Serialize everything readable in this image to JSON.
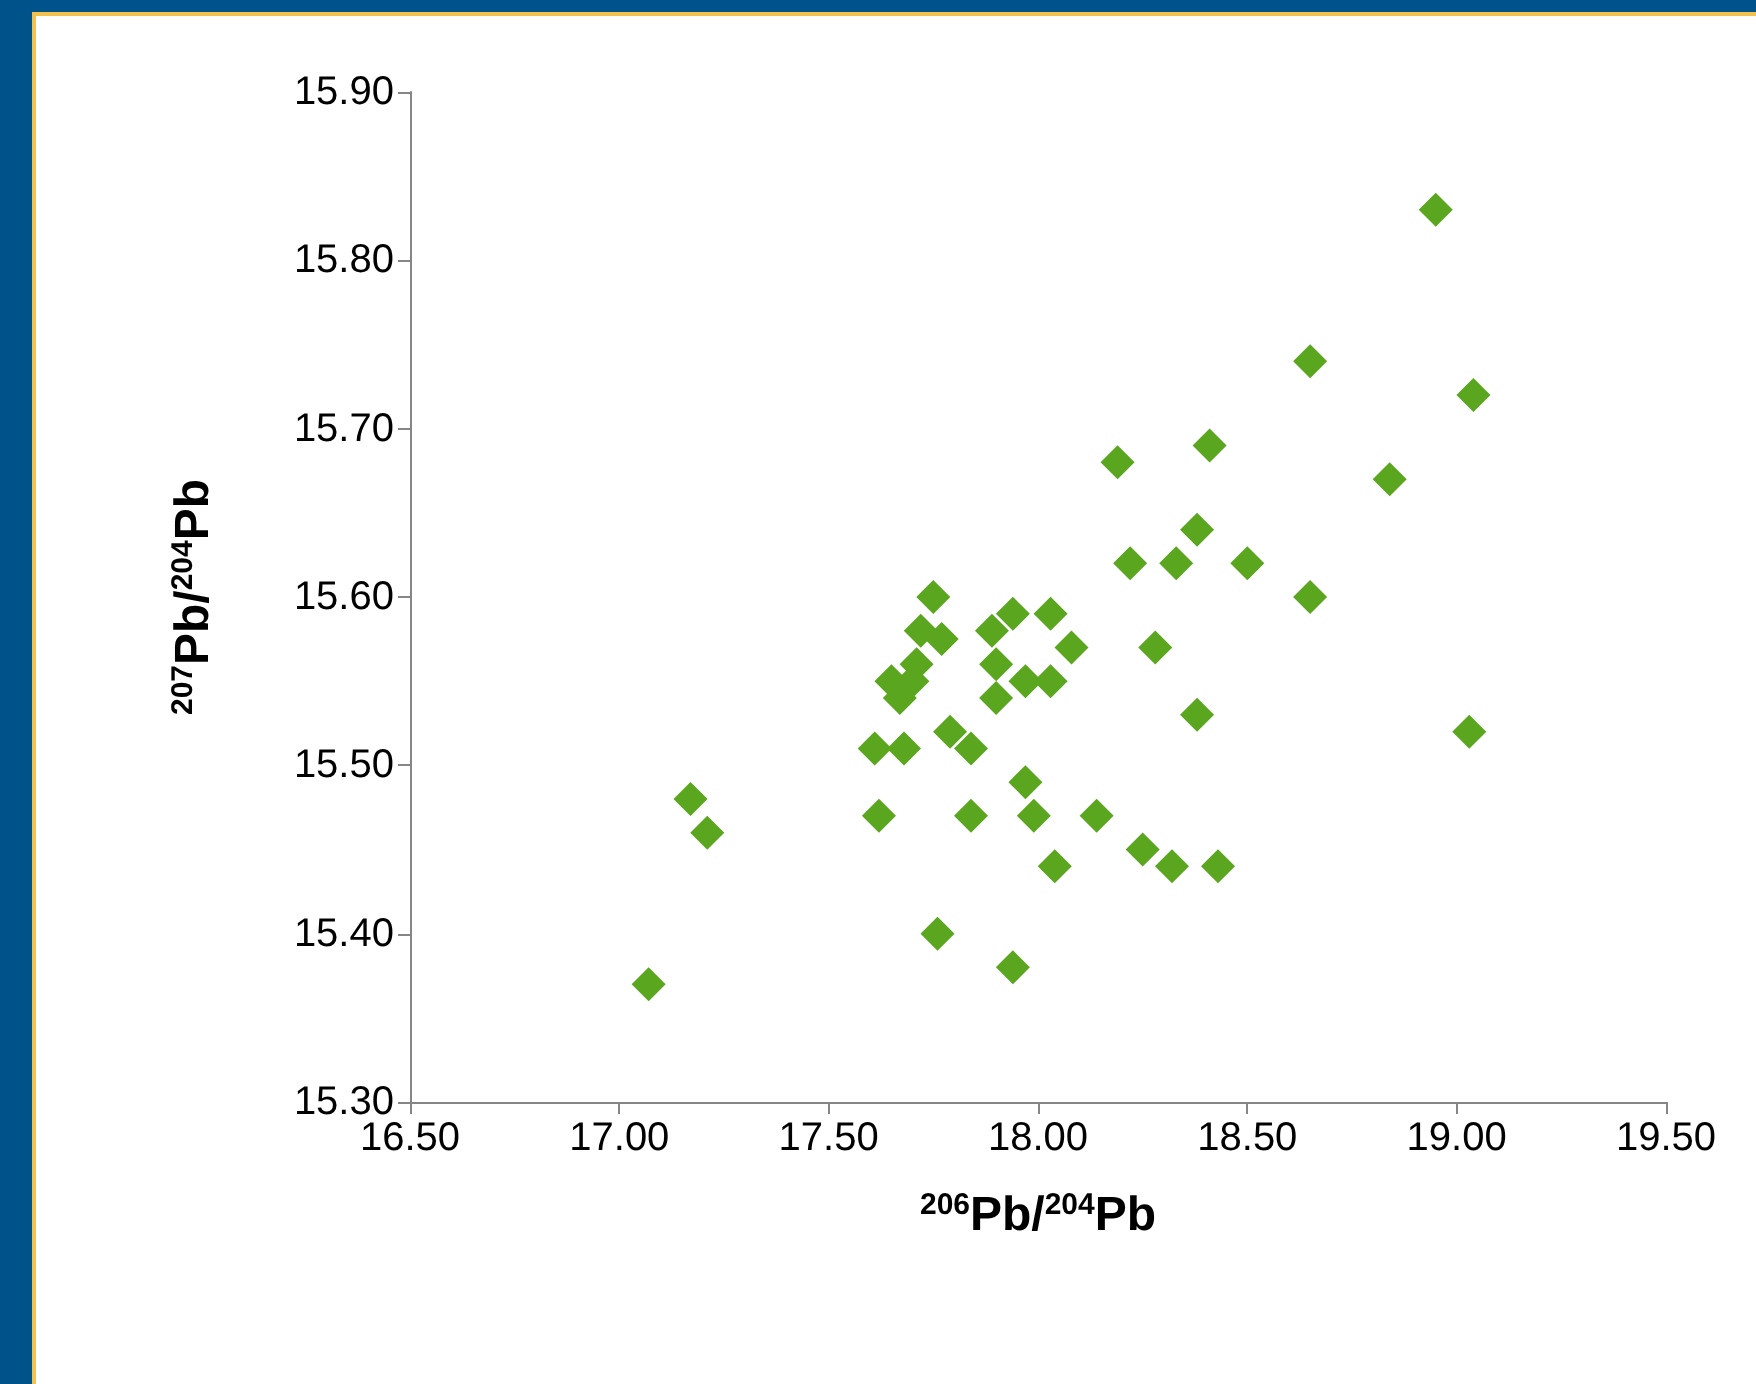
{
  "chart_data": {
    "type": "scatter",
    "xlabel": "$^{206}$Pb/$^{204}$Pb",
    "ylabel": "$^{207}$Pb/$^{204}$Pb",
    "marker": "diamond",
    "xlim": [
      16.5,
      19.5
    ],
    "xticks": [
      {
        "value": 16.5,
        "label": "16.50"
      },
      {
        "value": 17,
        "label": "17.00"
      },
      {
        "value": 17.5,
        "label": "17.50"
      },
      {
        "value": 18,
        "label": "18.00"
      },
      {
        "value": 18.5,
        "label": "18.50"
      },
      {
        "value": 19,
        "label": "19.00"
      },
      {
        "value": 19.5,
        "label": "19.50"
      }
    ],
    "ylim": [
      15.3,
      15.9
    ],
    "yticks": [
      {
        "value": 15.3,
        "label": "15.30"
      },
      {
        "value": 15.4,
        "label": "15.40"
      },
      {
        "value": 15.5,
        "label": "15.50"
      },
      {
        "value": 15.6,
        "label": "15.60"
      },
      {
        "value": 15.7,
        "label": "15.70"
      },
      {
        "value": 15.8,
        "label": "15.80"
      },
      {
        "value": 15.9,
        "label": "15.90"
      }
    ],
    "series": [
      {
        "color": "#5aa61e",
        "x": [
          17.07,
          17.17,
          17.21,
          17.75,
          17.77,
          17.72,
          17.89,
          17.94,
          18.03,
          18.08,
          17.71,
          17.65,
          17.67,
          17.7,
          17.9,
          17.97,
          18.03,
          17.9,
          17.61,
          17.68,
          17.79,
          17.84,
          17.62,
          17.84,
          17.97,
          17.99,
          18.14,
          18.04,
          18.25,
          18.32,
          18.43,
          17.76,
          17.94,
          18.95,
          18.65,
          19.04,
          18.41,
          18.84,
          18.38,
          18.33,
          18.5,
          18.65,
          18.28,
          18.38,
          19.03,
          18.19,
          18.22
        ],
        "values": [
          15.37,
          15.48,
          15.46,
          15.6,
          15.575,
          15.58,
          15.58,
          15.59,
          15.59,
          15.57,
          15.56,
          15.55,
          15.54,
          15.55,
          15.56,
          15.55,
          15.55,
          15.54,
          15.51,
          15.51,
          15.52,
          15.51,
          15.47,
          15.47,
          15.49,
          15.47,
          15.47,
          15.44,
          15.45,
          15.44,
          15.44,
          15.4,
          15.38,
          15.83,
          15.74,
          15.72,
          15.69,
          15.67,
          15.64,
          15.62,
          15.62,
          15.6,
          15.57,
          15.53,
          15.52,
          15.68,
          15.62
        ]
      }
    ]
  }
}
